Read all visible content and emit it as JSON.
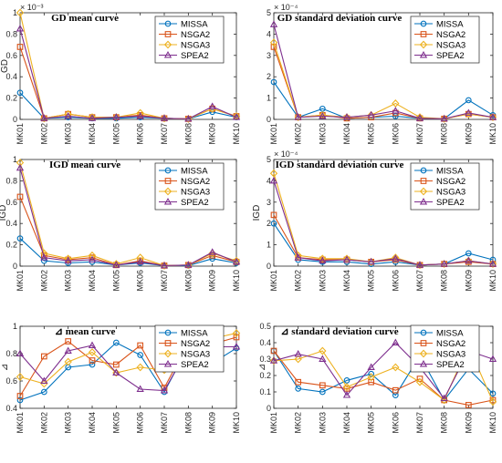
{
  "colors": {
    "MISSA": "#0072BD",
    "NSGA2": "#D95319",
    "NSGA3": "#EDB120",
    "SPEA2": "#7E2F8E"
  },
  "chart_data": [
    {
      "type": "line",
      "title": "GD mean curve",
      "ylabel": "GD",
      "exponent_label": "× 10⁻³",
      "categories": [
        "MK01",
        "MK02",
        "MK03",
        "MK04",
        "MK05",
        "MK06",
        "MK07",
        "MK08",
        "MK09",
        "MK10"
      ],
      "ylim": [
        0,
        1
      ],
      "yticks": [
        0,
        0.2,
        0.4,
        0.6,
        0.8,
        1
      ],
      "ytick_labels": [
        "0",
        "0.2",
        "0.4",
        "0.6",
        "0.8",
        "1"
      ],
      "legend_position": "top-right",
      "grid": false,
      "series": [
        {
          "name": "MISSA",
          "marker": "circle",
          "values": [
            0.25,
            0.01,
            0.02,
            0.01,
            0.01,
            0.02,
            0.01,
            0.005,
            0.07,
            0.02
          ]
        },
        {
          "name": "NSGA2",
          "marker": "square",
          "values": [
            0.68,
            0.01,
            0.05,
            0.02,
            0.02,
            0.04,
            0.01,
            0.005,
            0.1,
            0.03
          ]
        },
        {
          "name": "NSGA3",
          "marker": "diamond",
          "values": [
            1.0,
            0.01,
            0.05,
            0.02,
            0.02,
            0.06,
            0.01,
            0.005,
            0.1,
            0.03
          ]
        },
        {
          "name": "SPEA2",
          "marker": "triangle",
          "values": [
            0.85,
            0.01,
            0.03,
            0.01,
            0.02,
            0.03,
            0.01,
            0.005,
            0.12,
            0.02
          ]
        }
      ]
    },
    {
      "type": "line",
      "title": "GD standard deviation curve",
      "ylabel": "",
      "exponent_label": "× 10⁻⁴",
      "categories": [
        "MK01",
        "MK02",
        "MK03",
        "MK04",
        "MK05",
        "MK06",
        "MK07",
        "MK08",
        "MK09",
        "MK10"
      ],
      "ylim": [
        0,
        5
      ],
      "yticks": [
        0,
        1,
        2,
        3,
        4,
        5
      ],
      "ytick_labels": [
        "0",
        "1",
        "2",
        "3",
        "4",
        "5"
      ],
      "legend_position": "top-right",
      "grid": false,
      "series": [
        {
          "name": "MISSA",
          "marker": "circle",
          "values": [
            1.75,
            0.1,
            0.5,
            0.05,
            0.1,
            0.15,
            0.05,
            0.03,
            0.9,
            0.2
          ]
        },
        {
          "name": "NSGA2",
          "marker": "square",
          "values": [
            3.4,
            0.1,
            0.2,
            0.05,
            0.1,
            0.3,
            0.05,
            0.03,
            0.25,
            0.1
          ]
        },
        {
          "name": "NSGA3",
          "marker": "diamond",
          "values": [
            3.6,
            0.1,
            0.2,
            0.1,
            0.2,
            0.75,
            0.1,
            0.03,
            0.25,
            0.1
          ]
        },
        {
          "name": "SPEA2",
          "marker": "triangle",
          "values": [
            4.45,
            0.1,
            0.15,
            0.1,
            0.2,
            0.4,
            0.05,
            0.03,
            0.3,
            0.1
          ]
        }
      ]
    },
    {
      "type": "line",
      "title": "IGD mean curve",
      "ylabel": "IGD",
      "exponent_label": "",
      "categories": [
        "MK01",
        "MK02",
        "MK03",
        "MK04",
        "MK05",
        "MK06",
        "MK07",
        "MK08",
        "MK09",
        "MK10"
      ],
      "ylim": [
        0,
        1
      ],
      "yticks": [
        0,
        0.2,
        0.4,
        0.6,
        0.8,
        1
      ],
      "ytick_labels": [
        "0",
        "0.2",
        "0.4",
        "0.6",
        "0.8",
        "1"
      ],
      "legend_position": "top-right",
      "grid": false,
      "series": [
        {
          "name": "MISSA",
          "marker": "circle",
          "values": [
            0.26,
            0.05,
            0.03,
            0.04,
            0.01,
            0.03,
            0.005,
            0.005,
            0.07,
            0.03
          ]
        },
        {
          "name": "NSGA2",
          "marker": "square",
          "values": [
            0.65,
            0.1,
            0.06,
            0.08,
            0.01,
            0.05,
            0.005,
            0.01,
            0.1,
            0.04
          ]
        },
        {
          "name": "NSGA3",
          "marker": "diamond",
          "values": [
            0.97,
            0.12,
            0.07,
            0.1,
            0.02,
            0.08,
            0.005,
            0.01,
            0.12,
            0.05
          ]
        },
        {
          "name": "SPEA2",
          "marker": "triangle",
          "values": [
            0.92,
            0.08,
            0.05,
            0.06,
            0.01,
            0.04,
            0.005,
            0.01,
            0.13,
            0.04
          ]
        }
      ]
    },
    {
      "type": "line",
      "title": "IGD standard deviation curve",
      "ylabel": "IGD",
      "exponent_label": "× 10⁻⁴",
      "categories": [
        "MK01",
        "MK02",
        "MK03",
        "MK04",
        "MK05",
        "MK06",
        "MK07",
        "MK08",
        "MK09",
        "MK10"
      ],
      "ylim": [
        0,
        5
      ],
      "yticks": [
        0,
        1,
        2,
        3,
        4,
        5
      ],
      "ytick_labels": [
        "0",
        "1",
        "2",
        "3",
        "4",
        "5"
      ],
      "legend_position": "top-right",
      "grid": false,
      "series": [
        {
          "name": "MISSA",
          "marker": "circle",
          "values": [
            2.0,
            0.3,
            0.2,
            0.2,
            0.1,
            0.2,
            0.05,
            0.1,
            0.6,
            0.3
          ]
        },
        {
          "name": "NSGA2",
          "marker": "square",
          "values": [
            2.4,
            0.4,
            0.3,
            0.3,
            0.2,
            0.3,
            0.05,
            0.1,
            0.2,
            0.1
          ]
        },
        {
          "name": "NSGA3",
          "marker": "diamond",
          "values": [
            4.35,
            0.5,
            0.35,
            0.35,
            0.2,
            0.4,
            0.05,
            0.1,
            0.25,
            0.1
          ]
        },
        {
          "name": "SPEA2",
          "marker": "triangle",
          "values": [
            4.0,
            0.4,
            0.25,
            0.3,
            0.2,
            0.35,
            0.05,
            0.1,
            0.25,
            0.1
          ]
        }
      ]
    },
    {
      "type": "line",
      "title": "⊿ mean curve",
      "ylabel": "⊿",
      "exponent_label": "",
      "categories": [
        "MK01",
        "MK02",
        "MK03",
        "MK04",
        "MK05",
        "MK06",
        "MK07",
        "MK08",
        "MK09",
        "MK10"
      ],
      "ylim": [
        0.4,
        1
      ],
      "yticks": [
        0.4,
        0.6,
        0.8,
        1
      ],
      "ytick_labels": [
        "0.4",
        "0.6",
        "0.8",
        "1"
      ],
      "legend_position": "top-right",
      "grid": false,
      "series": [
        {
          "name": "MISSA",
          "marker": "circle",
          "values": [
            0.46,
            0.52,
            0.7,
            0.72,
            0.88,
            0.79,
            0.52,
            0.85,
            0.73,
            0.84
          ]
        },
        {
          "name": "NSGA2",
          "marker": "square",
          "values": [
            0.49,
            0.78,
            0.89,
            0.75,
            0.72,
            0.86,
            0.55,
            0.88,
            0.87,
            0.92
          ]
        },
        {
          "name": "NSGA3",
          "marker": "diamond",
          "values": [
            0.63,
            0.58,
            0.74,
            0.81,
            0.66,
            0.7,
            0.68,
            0.82,
            0.91,
            0.95
          ]
        },
        {
          "name": "SPEA2",
          "marker": "triangle",
          "values": [
            0.8,
            0.6,
            0.82,
            0.86,
            0.66,
            0.54,
            0.53,
            0.84,
            0.85,
            0.85
          ]
        }
      ]
    },
    {
      "type": "line",
      "title": "⊿ standard deviation curve",
      "ylabel": "⊿",
      "exponent_label": "",
      "categories": [
        "MK01",
        "MK02",
        "MK03",
        "MK04",
        "MK05",
        "MK06",
        "MK07",
        "MK08",
        "MK09",
        "MK10"
      ],
      "ylim": [
        0,
        0.5
      ],
      "yticks": [
        0,
        0.1,
        0.2,
        0.3,
        0.4,
        0.5
      ],
      "ytick_labels": [
        "0",
        "0.1",
        "0.2",
        "0.3",
        "0.4",
        "0.5"
      ],
      "legend_position": "top-right",
      "grid": false,
      "series": [
        {
          "name": "MISSA",
          "marker": "circle",
          "values": [
            0.35,
            0.12,
            0.1,
            0.17,
            0.21,
            0.08,
            0.32,
            0.05,
            0.24,
            0.09
          ]
        },
        {
          "name": "NSGA2",
          "marker": "square",
          "values": [
            0.35,
            0.16,
            0.14,
            0.12,
            0.16,
            0.11,
            0.18,
            0.05,
            0.02,
            0.05
          ]
        },
        {
          "name": "NSGA3",
          "marker": "diamond",
          "values": [
            0.29,
            0.3,
            0.35,
            0.13,
            0.19,
            0.25,
            0.16,
            0.05,
            0.38,
            0.04
          ]
        },
        {
          "name": "SPEA2",
          "marker": "triangle",
          "values": [
            0.29,
            0.33,
            0.3,
            0.08,
            0.25,
            0.4,
            0.25,
            0.06,
            0.35,
            0.3
          ]
        }
      ]
    }
  ]
}
